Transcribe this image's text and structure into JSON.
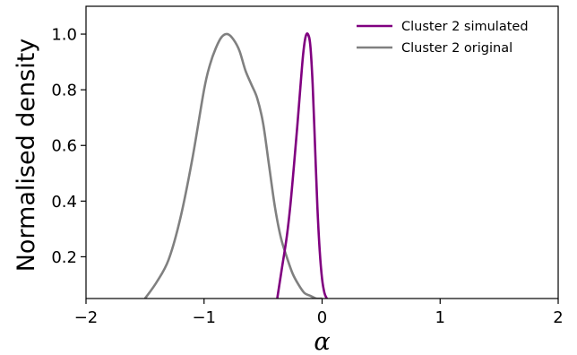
{
  "chart_data": {
    "type": "line",
    "xlabel": "α",
    "ylabel": "Normalised density",
    "xlim": [
      -2,
      2
    ],
    "ylim": [
      0.05,
      1.1
    ],
    "x_ticks": [
      "−2",
      "−1",
      "0",
      "1",
      "2"
    ],
    "x_tick_values": [
      -2,
      -1,
      0,
      1,
      2
    ],
    "y_ticks": [
      "0.2",
      "0.4",
      "0.6",
      "0.8",
      "1.0"
    ],
    "y_tick_values": [
      0.2,
      0.4,
      0.6,
      0.8,
      1.0
    ],
    "grid": false,
    "legend_position": "top-right",
    "series": [
      {
        "name": "Cluster 2 simulated",
        "color": "#800080",
        "x": [
          -0.38,
          -0.34,
          -0.3,
          -0.27,
          -0.24,
          -0.21,
          -0.18,
          -0.16,
          -0.14,
          -0.12,
          -0.1,
          -0.08,
          -0.06,
          -0.04,
          -0.02,
          0.0,
          0.02,
          0.04
        ],
        "y": [
          0.05,
          0.16,
          0.27,
          0.38,
          0.52,
          0.67,
          0.83,
          0.93,
          0.99,
          1.0,
          0.96,
          0.82,
          0.6,
          0.38,
          0.22,
          0.12,
          0.07,
          0.05
        ]
      },
      {
        "name": "Cluster 2 original",
        "color": "#808080",
        "x": [
          -1.5,
          -1.4,
          -1.3,
          -1.2,
          -1.1,
          -1.0,
          -0.95,
          -0.9,
          -0.85,
          -0.8,
          -0.75,
          -0.7,
          -0.65,
          -0.6,
          -0.55,
          -0.5,
          -0.45,
          -0.4,
          -0.35,
          -0.3,
          -0.25,
          -0.2,
          -0.15,
          -0.1,
          -0.05,
          0.0
        ],
        "y": [
          0.05,
          0.11,
          0.19,
          0.34,
          0.55,
          0.8,
          0.89,
          0.95,
          0.99,
          1.0,
          0.98,
          0.94,
          0.87,
          0.82,
          0.77,
          0.68,
          0.53,
          0.38,
          0.27,
          0.2,
          0.14,
          0.1,
          0.07,
          0.06,
          0.05,
          0.05
        ]
      }
    ]
  }
}
